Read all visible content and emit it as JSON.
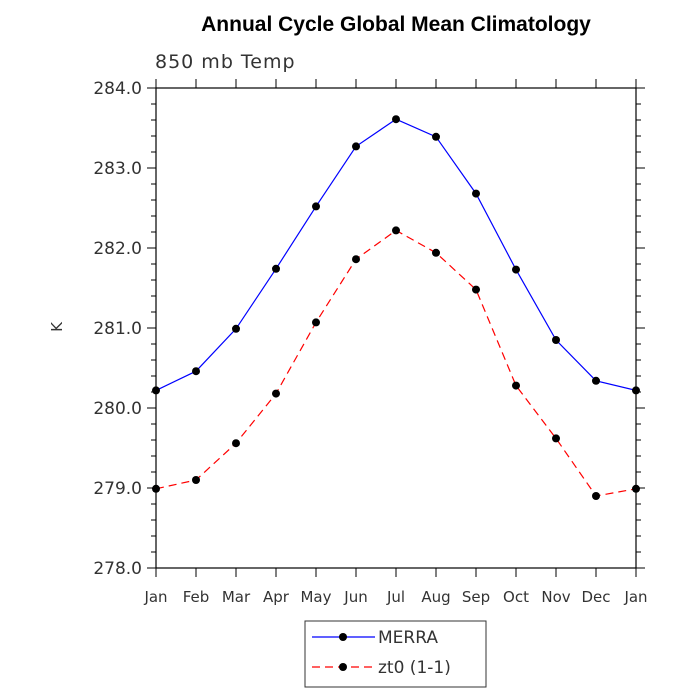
{
  "chart_data": {
    "type": "line",
    "title": "Annual Cycle Global Mean Climatology",
    "subtitle": "850 mb Temp",
    "xlabel": "",
    "ylabel": "K",
    "categories": [
      "Jan",
      "Feb",
      "Mar",
      "Apr",
      "May",
      "Jun",
      "Jul",
      "Aug",
      "Sep",
      "Oct",
      "Nov",
      "Dec",
      "Jan"
    ],
    "ylim": [
      278.0,
      284.0
    ],
    "yticks": [
      "278.0",
      "279.0",
      "280.0",
      "281.0",
      "282.0",
      "283.0",
      "284.0"
    ],
    "legend_position": "bottom-center",
    "series": [
      {
        "name": "MERRA",
        "color": "#0000ff",
        "dash": "solid",
        "values": [
          280.22,
          280.46,
          280.99,
          281.74,
          282.52,
          283.27,
          283.61,
          283.39,
          282.68,
          281.73,
          280.85,
          280.34,
          280.22
        ]
      },
      {
        "name": "zt0 (1-1)",
        "color": "#ff0000",
        "dash": "dashed",
        "values": [
          278.99,
          279.1,
          279.56,
          280.18,
          281.07,
          281.86,
          282.22,
          281.94,
          281.48,
          280.28,
          279.62,
          278.9,
          278.99
        ]
      }
    ]
  }
}
